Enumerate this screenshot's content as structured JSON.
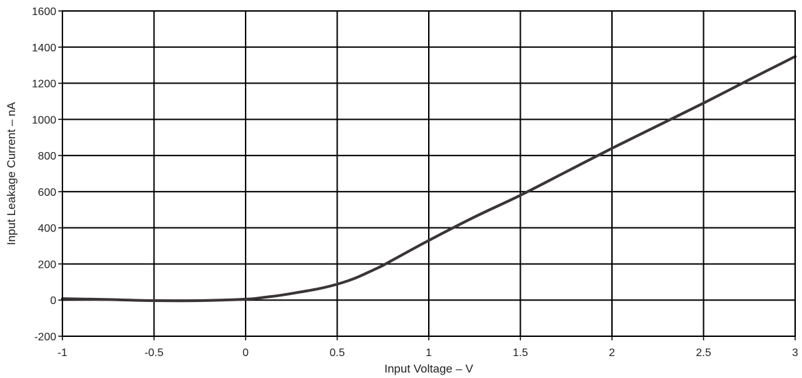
{
  "chart_data": {
    "type": "line",
    "title": "",
    "xlabel": "Input Voltage – V",
    "ylabel": "Input Leakage Current – nA",
    "xlim": [
      -1,
      3
    ],
    "ylim": [
      -200,
      1600
    ],
    "x_ticks": [
      -1,
      -0.5,
      0,
      0.5,
      1,
      1.5,
      2,
      2.5,
      3
    ],
    "x_tick_labels": [
      "-1",
      "-0.5",
      "0",
      "0.5",
      "1",
      "1.5",
      "2",
      "2.5",
      "3"
    ],
    "y_ticks": [
      -200,
      0,
      200,
      400,
      600,
      800,
      1000,
      1200,
      1400,
      1600
    ],
    "y_tick_labels": [
      "-200",
      "0",
      "200",
      "400",
      "600",
      "800",
      "1000",
      "1200",
      "1400",
      "1600"
    ],
    "grid": true,
    "legend": false,
    "line_color": "#3a3536",
    "series": [
      {
        "x": [
          -1,
          -0.75,
          -0.5,
          -0.25,
          0,
          0.1,
          0.2,
          0.3,
          0.4,
          0.5,
          0.6,
          0.7,
          0.75,
          0.8,
          1.0,
          1.25,
          1.5,
          1.75,
          2.0,
          2.25,
          2.5,
          2.75,
          3.0
        ],
        "values": [
          8,
          3,
          -3,
          -3,
          5,
          15,
          28,
          45,
          63,
          88,
          122,
          168,
          192,
          220,
          330,
          460,
          580,
          710,
          840,
          965,
          1090,
          1220,
          1348
        ]
      }
    ]
  }
}
